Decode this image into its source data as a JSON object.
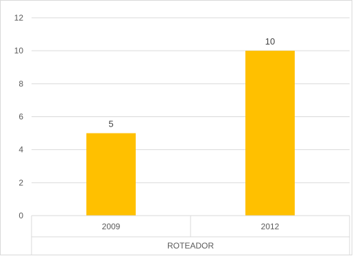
{
  "chart_data": {
    "type": "bar",
    "categories": [
      "2009",
      "2012"
    ],
    "values": [
      5,
      10
    ],
    "data_labels": [
      "5",
      "10"
    ],
    "group_label": "ROTEADOR",
    "ylim": [
      0,
      12
    ],
    "y_ticks": [
      0,
      2,
      4,
      6,
      8,
      10,
      12
    ],
    "grid": true,
    "legend": "none",
    "colors": {
      "bar": "#FFC000",
      "grid": "#d9d9d9",
      "text": "#595959"
    }
  }
}
